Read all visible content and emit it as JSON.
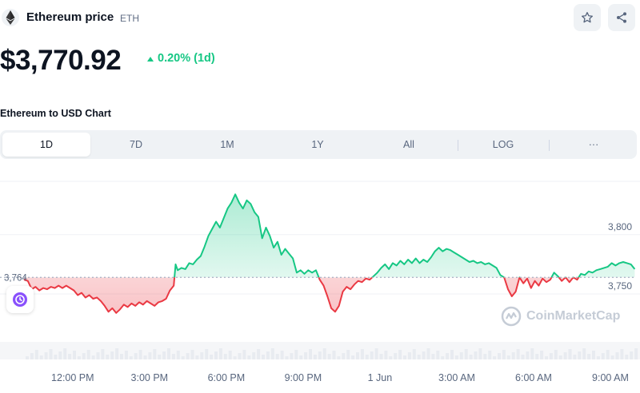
{
  "header": {
    "coin_name": "Ethereum price",
    "coin_symbol": "ETH",
    "icons": {
      "logo": "ethereum-logo-icon",
      "star": "star-icon",
      "share": "share-icon"
    }
  },
  "price": {
    "value": "$3,770.92",
    "change": "0.20% (1d)",
    "change_direction": "up",
    "colors": {
      "up": "#16c784",
      "down": "#ea3943"
    }
  },
  "chart_section": {
    "title": "Ethereum to USD Chart",
    "tabs": [
      {
        "label": "1D",
        "active": true
      },
      {
        "label": "7D",
        "active": false
      },
      {
        "label": "1M",
        "active": false
      },
      {
        "label": "1Y",
        "active": false
      },
      {
        "label": "All",
        "active": false
      },
      {
        "label": "LOG",
        "active": false
      },
      {
        "label": "···",
        "active": false
      }
    ],
    "history_icon": "history-icon",
    "watermark": "CoinMarketCap"
  },
  "chart_data": {
    "type": "area",
    "title": "",
    "xlabel": "",
    "ylabel": "",
    "baseline": 3764,
    "baseline_label": "3,764",
    "y_ticks": [
      {
        "value": 3800,
        "label": "3,800"
      },
      {
        "value": 3750,
        "label": "3,750"
      }
    ],
    "ylim": [
      3715,
      3845
    ],
    "x_ticks": [
      {
        "t": 1.9,
        "label": "12:00 PM"
      },
      {
        "t": 4.9,
        "label": "3:00 PM"
      },
      {
        "t": 7.9,
        "label": "6:00 PM"
      },
      {
        "t": 10.9,
        "label": "9:00 PM"
      },
      {
        "t": 13.9,
        "label": "1 Jun"
      },
      {
        "t": 16.9,
        "label": "3:00 AM"
      },
      {
        "t": 19.9,
        "label": "6:00 AM"
      },
      {
        "t": 22.9,
        "label": "9:00 AM"
      }
    ],
    "xlim": [
      0,
      23.9
    ],
    "grid": true,
    "colors": {
      "above": "#16c784",
      "below": "#ea3943"
    },
    "points": [
      [
        0.0,
        3762
      ],
      [
        0.15,
        3761
      ],
      [
        0.3,
        3754
      ],
      [
        0.45,
        3756
      ],
      [
        0.6,
        3753
      ],
      [
        0.75,
        3755
      ],
      [
        0.9,
        3754
      ],
      [
        1.05,
        3756
      ],
      [
        1.2,
        3755
      ],
      [
        1.35,
        3757
      ],
      [
        1.5,
        3755
      ],
      [
        1.65,
        3757
      ],
      [
        1.8,
        3755
      ],
      [
        1.95,
        3753
      ],
      [
        2.1,
        3749
      ],
      [
        2.25,
        3751
      ],
      [
        2.4,
        3747
      ],
      [
        2.55,
        3749
      ],
      [
        2.7,
        3746
      ],
      [
        2.85,
        3747
      ],
      [
        3.0,
        3744
      ],
      [
        3.15,
        3740
      ],
      [
        3.3,
        3735
      ],
      [
        3.45,
        3738
      ],
      [
        3.6,
        3734
      ],
      [
        3.75,
        3737
      ],
      [
        3.9,
        3741
      ],
      [
        4.05,
        3739
      ],
      [
        4.2,
        3742
      ],
      [
        4.35,
        3740
      ],
      [
        4.5,
        3743
      ],
      [
        4.65,
        3741
      ],
      [
        4.8,
        3744
      ],
      [
        4.95,
        3742
      ],
      [
        5.1,
        3740
      ],
      [
        5.25,
        3743
      ],
      [
        5.4,
        3744
      ],
      [
        5.55,
        3746
      ],
      [
        5.7,
        3753
      ],
      [
        5.85,
        3757
      ],
      [
        5.92,
        3775
      ],
      [
        6.0,
        3770
      ],
      [
        6.15,
        3772
      ],
      [
        6.3,
        3771
      ],
      [
        6.45,
        3776
      ],
      [
        6.6,
        3775
      ],
      [
        6.75,
        3779
      ],
      [
        6.9,
        3782
      ],
      [
        7.05,
        3790
      ],
      [
        7.2,
        3799
      ],
      [
        7.35,
        3805
      ],
      [
        7.5,
        3811
      ],
      [
        7.65,
        3806
      ],
      [
        7.8,
        3814
      ],
      [
        7.95,
        3822
      ],
      [
        8.1,
        3827
      ],
      [
        8.25,
        3834
      ],
      [
        8.4,
        3827
      ],
      [
        8.55,
        3822
      ],
      [
        8.7,
        3829
      ],
      [
        8.85,
        3826
      ],
      [
        9.0,
        3819
      ],
      [
        9.15,
        3815
      ],
      [
        9.3,
        3797
      ],
      [
        9.45,
        3806
      ],
      [
        9.6,
        3799
      ],
      [
        9.75,
        3789
      ],
      [
        9.9,
        3794
      ],
      [
        10.05,
        3783
      ],
      [
        10.2,
        3788
      ],
      [
        10.35,
        3784
      ],
      [
        10.5,
        3780
      ],
      [
        10.65,
        3768
      ],
      [
        10.8,
        3770
      ],
      [
        10.95,
        3767
      ],
      [
        11.1,
        3770
      ],
      [
        11.25,
        3768
      ],
      [
        11.4,
        3770
      ],
      [
        11.55,
        3762
      ],
      [
        11.7,
        3757
      ],
      [
        11.85,
        3748
      ],
      [
        12.0,
        3738
      ],
      [
        12.15,
        3735
      ],
      [
        12.3,
        3740
      ],
      [
        12.45,
        3752
      ],
      [
        12.6,
        3756
      ],
      [
        12.75,
        3754
      ],
      [
        12.9,
        3758
      ],
      [
        13.05,
        3761
      ],
      [
        13.2,
        3760
      ],
      [
        13.35,
        3763
      ],
      [
        13.5,
        3762
      ],
      [
        13.65,
        3765
      ],
      [
        13.8,
        3768
      ],
      [
        13.95,
        3772
      ],
      [
        14.1,
        3775
      ],
      [
        14.25,
        3771
      ],
      [
        14.4,
        3776
      ],
      [
        14.55,
        3774
      ],
      [
        14.7,
        3778
      ],
      [
        14.85,
        3775
      ],
      [
        15.0,
        3779
      ],
      [
        15.15,
        3776
      ],
      [
        15.3,
        3780
      ],
      [
        15.45,
        3776
      ],
      [
        15.6,
        3779
      ],
      [
        15.75,
        3777
      ],
      [
        15.9,
        3781
      ],
      [
        16.05,
        3786
      ],
      [
        16.2,
        3789
      ],
      [
        16.35,
        3786
      ],
      [
        16.5,
        3788
      ],
      [
        16.65,
        3787
      ],
      [
        16.8,
        3785
      ],
      [
        16.95,
        3783
      ],
      [
        17.1,
        3781
      ],
      [
        17.25,
        3779
      ],
      [
        17.4,
        3777
      ],
      [
        17.55,
        3778
      ],
      [
        17.7,
        3776
      ],
      [
        17.85,
        3777
      ],
      [
        18.0,
        3775
      ],
      [
        18.15,
        3776
      ],
      [
        18.3,
        3774
      ],
      [
        18.45,
        3772
      ],
      [
        18.6,
        3766
      ],
      [
        18.75,
        3764
      ],
      [
        18.9,
        3754
      ],
      [
        19.05,
        3748
      ],
      [
        19.2,
        3752
      ],
      [
        19.35,
        3764
      ],
      [
        19.5,
        3759
      ],
      [
        19.65,
        3763
      ],
      [
        19.8,
        3755
      ],
      [
        19.95,
        3761
      ],
      [
        20.1,
        3757
      ],
      [
        20.25,
        3763
      ],
      [
        20.4,
        3760
      ],
      [
        20.55,
        3762
      ],
      [
        20.7,
        3768
      ],
      [
        20.85,
        3765
      ],
      [
        21.0,
        3761
      ],
      [
        21.15,
        3764
      ],
      [
        21.3,
        3760
      ],
      [
        21.45,
        3764
      ],
      [
        21.6,
        3762
      ],
      [
        21.75,
        3767
      ],
      [
        21.9,
        3766
      ],
      [
        22.05,
        3769
      ],
      [
        22.2,
        3768
      ],
      [
        22.35,
        3770
      ],
      [
        22.5,
        3771
      ],
      [
        22.65,
        3772
      ],
      [
        22.8,
        3773
      ],
      [
        22.95,
        3776
      ],
      [
        23.1,
        3774
      ],
      [
        23.25,
        3776
      ],
      [
        23.4,
        3777
      ],
      [
        23.55,
        3776
      ],
      [
        23.7,
        3775
      ],
      [
        23.85,
        3771
      ]
    ]
  }
}
